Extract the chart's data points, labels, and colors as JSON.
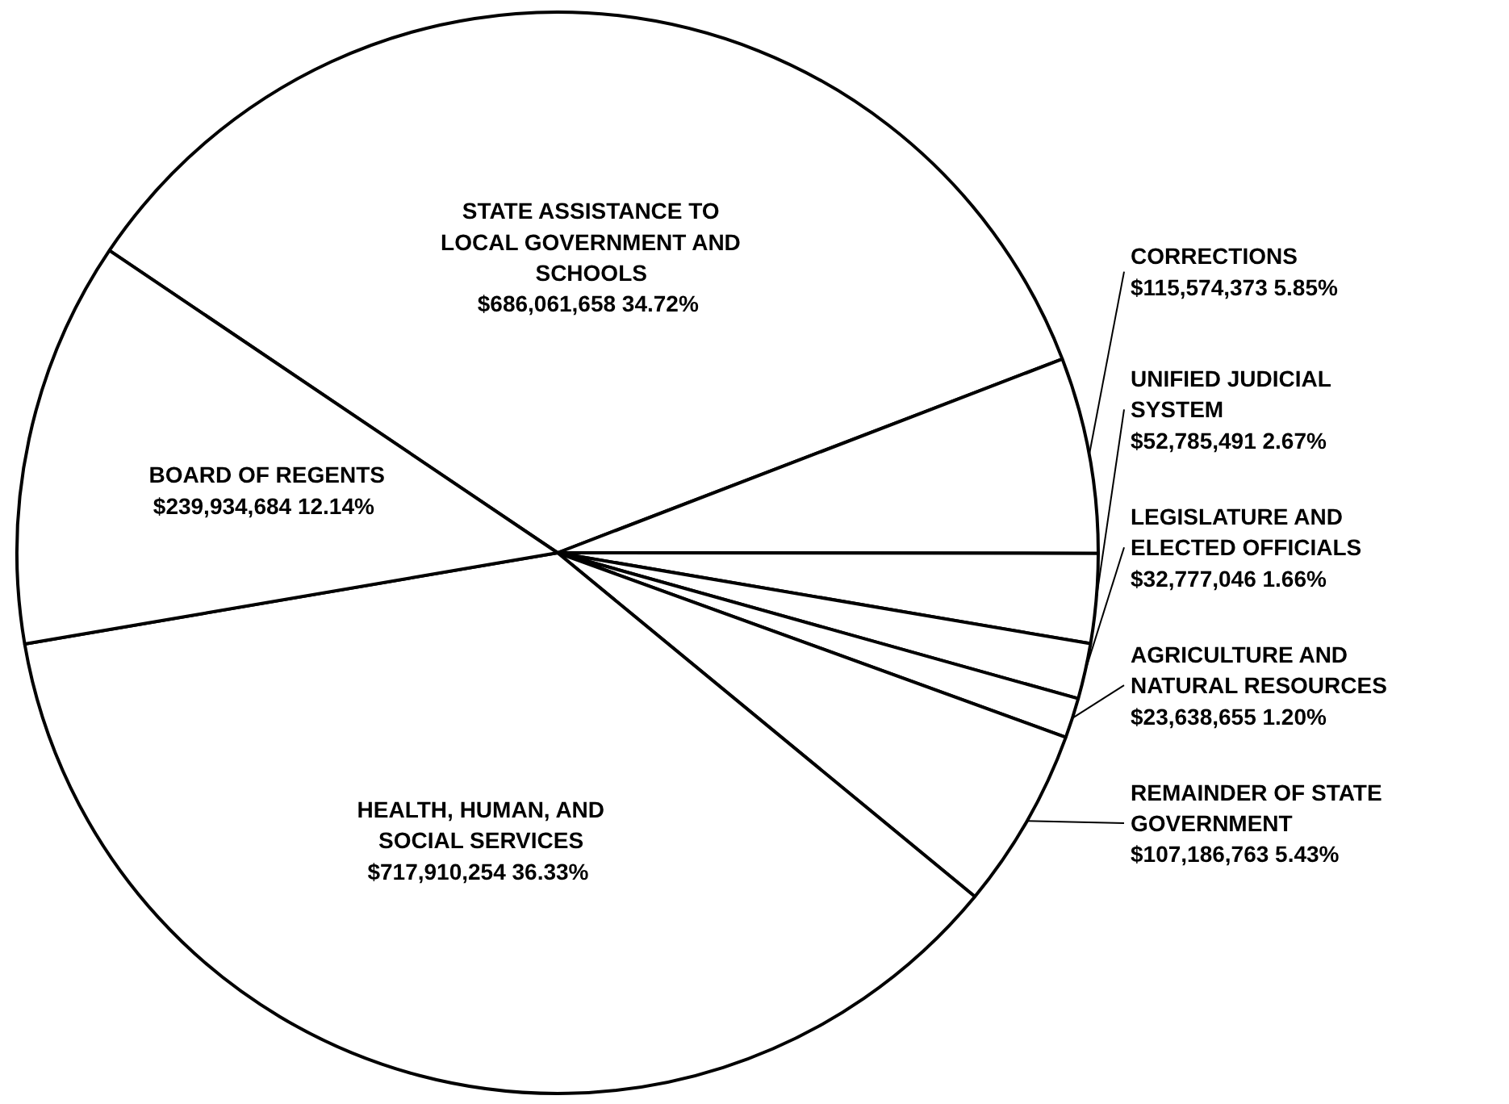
{
  "chart_data": {
    "type": "pie",
    "categories": [
      "STATE ASSISTANCE TO LOCAL GOVERNMENT AND SCHOOLS",
      "CORRECTIONS",
      "UNIFIED JUDICIAL SYSTEM",
      "LEGISLATURE AND ELECTED OFFICIALS",
      "AGRICULTURE AND NATURAL RESOURCES",
      "REMAINDER OF STATE GOVERNMENT",
      "HEALTH, HUMAN, AND SOCIAL SERVICES",
      "BOARD OF REGENTS"
    ],
    "values": [
      686061658,
      115574373,
      52785491,
      32777046,
      23638655,
      107186763,
      717910254,
      239934684
    ],
    "value_labels": [
      "$686,061,658  34.72%",
      "$115,574,373  5.85%",
      "$52,785,491  2.67%",
      "$32,777,046  1.66%",
      "$23,638,655  1.20%",
      "$107,186,763  5.43%",
      "$717,910,254  36.33%",
      "$239,934,684  12.14%"
    ],
    "colors": [
      "#ffffff",
      "#ffffff",
      "#ffffff",
      "#ffffff",
      "#ffffff",
      "#ffffff",
      "#ffffff",
      "#ffffff"
    ]
  }
}
